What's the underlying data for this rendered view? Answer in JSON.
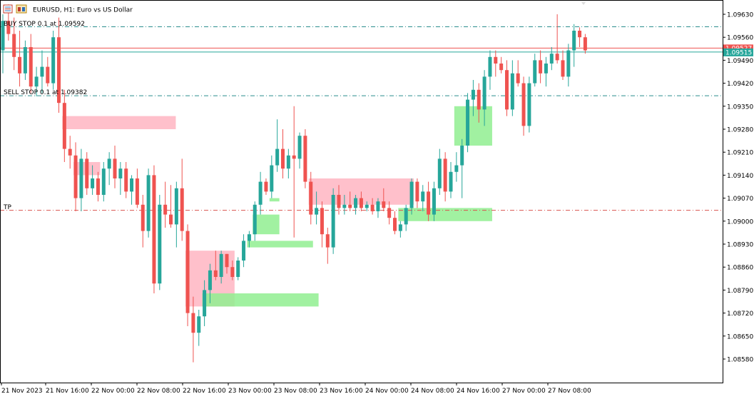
{
  "header": {
    "title": "EURUSD, H1:  Euro vs US Dollar",
    "icons": [
      "chart-menu-icon",
      "window-icon"
    ]
  },
  "levels": {
    "buy_stop": {
      "label": "BUY STOP 0.1 at 1.09592",
      "price": 1.09592
    },
    "sell_stop": {
      "label": "SELL STOP 0.1 at 1.09382",
      "price": 1.09382
    },
    "tp": {
      "label": "TP",
      "price": 1.09033
    }
  },
  "current": {
    "bid": "1.09515",
    "ask": "1.09527",
    "bid_price": 1.09515,
    "ask_price": 1.09527
  },
  "colors": {
    "bull": "#26a69a",
    "bear": "#ef5350",
    "demand_zone": "#90ee90",
    "supply_zone": "#ffc0cb",
    "buy_line": "#2a8e8e",
    "tp_line": "#d9534f",
    "bid_tag": "#26a69a",
    "ask_tag": "#ef5350"
  },
  "chart_data": {
    "type": "candlestick",
    "symbol": "EURUSD",
    "timeframe": "H1",
    "ylim": [
      1.0854,
      1.0967
    ],
    "y_ticks": [
      "1.09630",
      "1.09560",
      "1.09490",
      "1.09420",
      "1.09350",
      "1.09280",
      "1.09210",
      "1.09140",
      "1.09070",
      "1.09000",
      "1.08930",
      "1.08860",
      "1.08790",
      "1.08720",
      "1.08650",
      "1.08580"
    ],
    "x_ticks": [
      "21 Nov 2023",
      "21 Nov 16:00",
      "22 Nov 00:00",
      "22 Nov 08:00",
      "22 Nov 16:00",
      "23 Nov 00:00",
      "23 Nov 08:00",
      "23 Nov 16:00",
      "24 Nov 00:00",
      "24 Nov 08:00",
      "24 Nov 16:00",
      "27 Nov 00:00",
      "27 Nov 08:00"
    ],
    "candles": [
      {
        "o": 1.0952,
        "h": 1.0963,
        "l": 1.0945,
        "c": 1.0961
      },
      {
        "o": 1.0961,
        "h": 1.0966,
        "l": 1.0955,
        "c": 1.0957
      },
      {
        "o": 1.0957,
        "h": 1.0962,
        "l": 1.0946,
        "c": 1.095
      },
      {
        "o": 1.095,
        "h": 1.0958,
        "l": 1.0941,
        "c": 1.0945
      },
      {
        "o": 1.0945,
        "h": 1.0955,
        "l": 1.0943,
        "c": 1.0953
      },
      {
        "o": 1.0953,
        "h": 1.0957,
        "l": 1.0939,
        "c": 1.0941
      },
      {
        "o": 1.0941,
        "h": 1.0947,
        "l": 1.0938,
        "c": 1.0944
      },
      {
        "o": 1.0944,
        "h": 1.0952,
        "l": 1.0939,
        "c": 1.0947
      },
      {
        "o": 1.0947,
        "h": 1.095,
        "l": 1.0941,
        "c": 1.0942
      },
      {
        "o": 1.0942,
        "h": 1.0958,
        "l": 1.094,
        "c": 1.0956
      },
      {
        "o": 1.0956,
        "h": 1.0962,
        "l": 1.0933,
        "c": 1.0936
      },
      {
        "o": 1.0936,
        "h": 1.094,
        "l": 1.0918,
        "c": 1.0922
      },
      {
        "o": 1.0922,
        "h": 1.0926,
        "l": 1.0916,
        "c": 1.092
      },
      {
        "o": 1.092,
        "h": 1.0924,
        "l": 1.0903,
        "c": 1.0907
      },
      {
        "o": 1.0907,
        "h": 1.0922,
        "l": 1.0903,
        "c": 1.0919
      },
      {
        "o": 1.0919,
        "h": 1.0921,
        "l": 1.0908,
        "c": 1.091
      },
      {
        "o": 1.091,
        "h": 1.0917,
        "l": 1.0908,
        "c": 1.0913
      },
      {
        "o": 1.0913,
        "h": 1.0915,
        "l": 1.0906,
        "c": 1.0908
      },
      {
        "o": 1.0908,
        "h": 1.0918,
        "l": 1.0906,
        "c": 1.0916
      },
      {
        "o": 1.0916,
        "h": 1.0921,
        "l": 1.0911,
        "c": 1.0919
      },
      {
        "o": 1.0919,
        "h": 1.0923,
        "l": 1.091,
        "c": 1.0913
      },
      {
        "o": 1.0913,
        "h": 1.0918,
        "l": 1.0908,
        "c": 1.0916
      },
      {
        "o": 1.0916,
        "h": 1.0918,
        "l": 1.0907,
        "c": 1.0909
      },
      {
        "o": 1.0909,
        "h": 1.0914,
        "l": 1.0905,
        "c": 1.0913
      },
      {
        "o": 1.0913,
        "h": 1.0916,
        "l": 1.0904,
        "c": 1.0905
      },
      {
        "o": 1.0905,
        "h": 1.0908,
        "l": 1.0892,
        "c": 1.0897
      },
      {
        "o": 1.0897,
        "h": 1.0916,
        "l": 1.0895,
        "c": 1.0914
      },
      {
        "o": 1.0914,
        "h": 1.0917,
        "l": 1.0878,
        "c": 1.0881
      },
      {
        "o": 1.0881,
        "h": 1.0908,
        "l": 1.0879,
        "c": 1.0905
      },
      {
        "o": 1.0905,
        "h": 1.0912,
        "l": 1.0898,
        "c": 1.0902
      },
      {
        "o": 1.0902,
        "h": 1.0911,
        "l": 1.0898,
        "c": 1.0899
      },
      {
        "o": 1.0899,
        "h": 1.0912,
        "l": 1.0892,
        "c": 1.091
      },
      {
        "o": 1.091,
        "h": 1.0919,
        "l": 1.0894,
        "c": 1.0897
      },
      {
        "o": 1.0897,
        "h": 1.0899,
        "l": 1.0868,
        "c": 1.0872
      },
      {
        "o": 1.0872,
        "h": 1.0877,
        "l": 1.0857,
        "c": 1.0866
      },
      {
        "o": 1.0866,
        "h": 1.0873,
        "l": 1.0862,
        "c": 1.0871
      },
      {
        "o": 1.0871,
        "h": 1.0882,
        "l": 1.0868,
        "c": 1.0879
      },
      {
        "o": 1.0879,
        "h": 1.0887,
        "l": 1.0875,
        "c": 1.0885
      },
      {
        "o": 1.0885,
        "h": 1.0891,
        "l": 1.0882,
        "c": 1.0883
      },
      {
        "o": 1.0883,
        "h": 1.0891,
        "l": 1.0881,
        "c": 1.089
      },
      {
        "o": 1.089,
        "h": 1.089,
        "l": 1.0884,
        "c": 1.0886
      },
      {
        "o": 1.0886,
        "h": 1.0888,
        "l": 1.0882,
        "c": 1.0883
      },
      {
        "o": 1.0883,
        "h": 1.0889,
        "l": 1.0882,
        "c": 1.0888
      },
      {
        "o": 1.0888,
        "h": 1.0896,
        "l": 1.0886,
        "c": 1.0894
      },
      {
        "o": 1.0894,
        "h": 1.0897,
        "l": 1.0892,
        "c": 1.0896
      },
      {
        "o": 1.0896,
        "h": 1.0906,
        "l": 1.0894,
        "c": 1.0905
      },
      {
        "o": 1.0905,
        "h": 1.0915,
        "l": 1.0902,
        "c": 1.0912
      },
      {
        "o": 1.0912,
        "h": 1.0913,
        "l": 1.0908,
        "c": 1.0909
      },
      {
        "o": 1.0909,
        "h": 1.092,
        "l": 1.0907,
        "c": 1.0917
      },
      {
        "o": 1.0917,
        "h": 1.0931,
        "l": 1.0915,
        "c": 1.0922
      },
      {
        "o": 1.0922,
        "h": 1.0928,
        "l": 1.0913,
        "c": 1.0916
      },
      {
        "o": 1.0916,
        "h": 1.0922,
        "l": 1.0913,
        "c": 1.092
      },
      {
        "o": 1.092,
        "h": 1.0935,
        "l": 1.0895,
        "c": 1.0919
      },
      {
        "o": 1.0919,
        "h": 1.0927,
        "l": 1.0916,
        "c": 1.0926
      },
      {
        "o": 1.0926,
        "h": 1.0928,
        "l": 1.091,
        "c": 1.0912
      },
      {
        "o": 1.0912,
        "h": 1.0915,
        "l": 1.0899,
        "c": 1.0902
      },
      {
        "o": 1.0902,
        "h": 1.0909,
        "l": 1.0899,
        "c": 1.0904
      },
      {
        "o": 1.0904,
        "h": 1.0906,
        "l": 1.0892,
        "c": 1.0896
      },
      {
        "o": 1.0896,
        "h": 1.0898,
        "l": 1.0887,
        "c": 1.0892
      },
      {
        "o": 1.0892,
        "h": 1.091,
        "l": 1.089,
        "c": 1.0908
      },
      {
        "o": 1.0908,
        "h": 1.0911,
        "l": 1.0902,
        "c": 1.0904
      },
      {
        "o": 1.0904,
        "h": 1.0908,
        "l": 1.0902,
        "c": 1.0905
      },
      {
        "o": 1.0905,
        "h": 1.0909,
        "l": 1.0903,
        "c": 1.0904
      },
      {
        "o": 1.0904,
        "h": 1.0908,
        "l": 1.0902,
        "c": 1.0907
      },
      {
        "o": 1.0907,
        "h": 1.0909,
        "l": 1.0903,
        "c": 1.0904
      },
      {
        "o": 1.0904,
        "h": 1.0906,
        "l": 1.0903,
        "c": 1.0905
      },
      {
        "o": 1.0905,
        "h": 1.0907,
        "l": 1.0902,
        "c": 1.0903
      },
      {
        "o": 1.0903,
        "h": 1.0907,
        "l": 1.0901,
        "c": 1.0906
      },
      {
        "o": 1.0906,
        "h": 1.091,
        "l": 1.0903,
        "c": 1.0904
      },
      {
        "o": 1.0904,
        "h": 1.0906,
        "l": 1.0899,
        "c": 1.0901
      },
      {
        "o": 1.0901,
        "h": 1.0903,
        "l": 1.0896,
        "c": 1.0897
      },
      {
        "o": 1.0897,
        "h": 1.09,
        "l": 1.0895,
        "c": 1.0899
      },
      {
        "o": 1.0899,
        "h": 1.0905,
        "l": 1.0897,
        "c": 1.0904
      },
      {
        "o": 1.0904,
        "h": 1.0913,
        "l": 1.0902,
        "c": 1.0912
      },
      {
        "o": 1.0912,
        "h": 1.0913,
        "l": 1.0904,
        "c": 1.0906
      },
      {
        "o": 1.0906,
        "h": 1.0911,
        "l": 1.0903,
        "c": 1.0909
      },
      {
        "o": 1.0909,
        "h": 1.0912,
        "l": 1.09,
        "c": 1.0902
      },
      {
        "o": 1.0902,
        "h": 1.0912,
        "l": 1.09,
        "c": 1.091
      },
      {
        "o": 1.091,
        "h": 1.0922,
        "l": 1.0908,
        "c": 1.0919
      },
      {
        "o": 1.0919,
        "h": 1.0921,
        "l": 1.0906,
        "c": 1.0909
      },
      {
        "o": 1.0909,
        "h": 1.0918,
        "l": 1.0907,
        "c": 1.0915
      },
      {
        "o": 1.0915,
        "h": 1.0921,
        "l": 1.0912,
        "c": 1.0917
      },
      {
        "o": 1.0917,
        "h": 1.0925,
        "l": 1.0907,
        "c": 1.0923
      },
      {
        "o": 1.0923,
        "h": 1.0939,
        "l": 1.0921,
        "c": 1.0937
      },
      {
        "o": 1.0937,
        "h": 1.0943,
        "l": 1.0932,
        "c": 1.094
      },
      {
        "o": 1.094,
        "h": 1.0942,
        "l": 1.093,
        "c": 1.0934
      },
      {
        "o": 1.0934,
        "h": 1.0946,
        "l": 1.0929,
        "c": 1.0944
      },
      {
        "o": 1.0944,
        "h": 1.0952,
        "l": 1.094,
        "c": 1.095
      },
      {
        "o": 1.095,
        "h": 1.0952,
        "l": 1.0944,
        "c": 1.0948
      },
      {
        "o": 1.0948,
        "h": 1.095,
        "l": 1.0945,
        "c": 1.0946
      },
      {
        "o": 1.0946,
        "h": 1.0949,
        "l": 1.0932,
        "c": 1.0934
      },
      {
        "o": 1.0934,
        "h": 1.0949,
        "l": 1.0932,
        "c": 1.0945
      },
      {
        "o": 1.0945,
        "h": 1.0949,
        "l": 1.0941,
        "c": 1.0942
      },
      {
        "o": 1.0942,
        "h": 1.0944,
        "l": 1.0926,
        "c": 1.0929
      },
      {
        "o": 1.0929,
        "h": 1.0944,
        "l": 1.0927,
        "c": 1.0942
      },
      {
        "o": 1.0942,
        "h": 1.0951,
        "l": 1.0941,
        "c": 1.0949
      },
      {
        "o": 1.0949,
        "h": 1.0952,
        "l": 1.0942,
        "c": 1.0945
      },
      {
        "o": 1.0945,
        "h": 1.095,
        "l": 1.0941,
        "c": 1.0948
      },
      {
        "o": 1.0948,
        "h": 1.0953,
        "l": 1.0946,
        "c": 1.0951
      },
      {
        "o": 1.0951,
        "h": 1.0963,
        "l": 1.0948,
        "c": 1.0949
      },
      {
        "o": 1.0949,
        "h": 1.0952,
        "l": 1.0943,
        "c": 1.0944
      },
      {
        "o": 1.0944,
        "h": 1.0954,
        "l": 1.0941,
        "c": 1.0952
      },
      {
        "o": 1.0952,
        "h": 1.096,
        "l": 1.0947,
        "c": 1.0958
      },
      {
        "o": 1.0958,
        "h": 1.0959,
        "l": 1.0953,
        "c": 1.0956
      },
      {
        "o": 1.0956,
        "h": 1.0957,
        "l": 1.0951,
        "c": 1.0952
      }
    ],
    "zones": [
      {
        "type": "supply",
        "x_from": 11,
        "x_to": 30.5,
        "top": 1.0932,
        "bottom": 1.0928
      },
      {
        "type": "supply",
        "x_from": 13,
        "x_to": 17,
        "top": 1.0918,
        "bottom": 1.0914
      },
      {
        "type": "supply",
        "x_from": 33,
        "x_to": 41,
        "top": 1.0891,
        "bottom": 1.0874
      },
      {
        "type": "supply",
        "x_from": 55,
        "x_to": 73,
        "top": 1.0913,
        "bottom": 1.0905
      },
      {
        "type": "demand",
        "x_from": 36,
        "x_to": 56,
        "top": 1.0878,
        "bottom": 1.0874
      },
      {
        "type": "demand",
        "x_from": 45,
        "x_to": 49,
        "top": 1.0902,
        "bottom": 1.0896
      },
      {
        "type": "demand",
        "x_from": 44,
        "x_to": 55,
        "top": 1.0894,
        "bottom": 1.0892
      },
      {
        "type": "demand",
        "x_from": 48,
        "x_to": 49,
        "top": 1.0907,
        "bottom": 1.0906
      },
      {
        "type": "demand",
        "x_from": 71,
        "x_to": 87,
        "top": 1.0904,
        "bottom": 1.09
      },
      {
        "type": "demand",
        "x_from": 81,
        "x_to": 87,
        "top": 1.0935,
        "bottom": 1.0923
      }
    ]
  }
}
